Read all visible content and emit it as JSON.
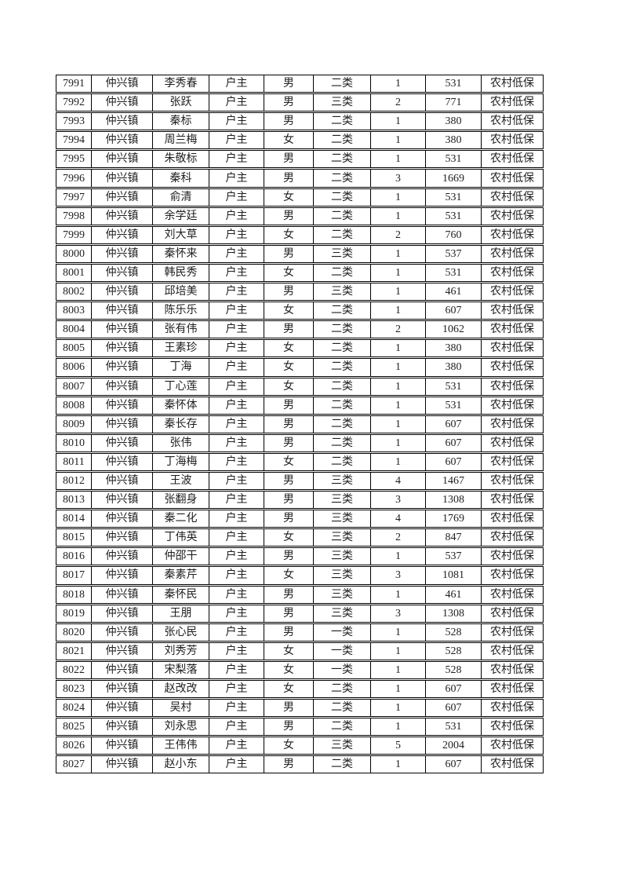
{
  "page": {
    "background_color": "#ffffff",
    "text_color": "#1f1f1f",
    "border_color": "#000000"
  },
  "table": {
    "column_keys": [
      "serial-number",
      "town",
      "name",
      "household-role",
      "gender",
      "category",
      "person-count",
      "amount",
      "benefit-type"
    ],
    "rows": [
      [
        "7991",
        "仲兴镇",
        "李秀春",
        "户主",
        "男",
        "二类",
        "1",
        "531",
        "农村低保"
      ],
      [
        "7992",
        "仲兴镇",
        "张跃",
        "户主",
        "男",
        "三类",
        "2",
        "771",
        "农村低保"
      ],
      [
        "7993",
        "仲兴镇",
        "秦标",
        "户主",
        "男",
        "二类",
        "1",
        "380",
        "农村低保"
      ],
      [
        "7994",
        "仲兴镇",
        "周兰梅",
        "户主",
        "女",
        "二类",
        "1",
        "380",
        "农村低保"
      ],
      [
        "7995",
        "仲兴镇",
        "朱敬标",
        "户主",
        "男",
        "二类",
        "1",
        "531",
        "农村低保"
      ],
      [
        "7996",
        "仲兴镇",
        "秦科",
        "户主",
        "男",
        "二类",
        "3",
        "1669",
        "农村低保"
      ],
      [
        "7997",
        "仲兴镇",
        "俞清",
        "户主",
        "女",
        "二类",
        "1",
        "531",
        "农村低保"
      ],
      [
        "7998",
        "仲兴镇",
        "余学廷",
        "户主",
        "男",
        "二类",
        "1",
        "531",
        "农村低保"
      ],
      [
        "7999",
        "仲兴镇",
        "刘大草",
        "户主",
        "女",
        "二类",
        "2",
        "760",
        "农村低保"
      ],
      [
        "8000",
        "仲兴镇",
        "秦怀来",
        "户主",
        "男",
        "三类",
        "1",
        "537",
        "农村低保"
      ],
      [
        "8001",
        "仲兴镇",
        "韩民秀",
        "户主",
        "女",
        "二类",
        "1",
        "531",
        "农村低保"
      ],
      [
        "8002",
        "仲兴镇",
        "邱培美",
        "户主",
        "男",
        "三类",
        "1",
        "461",
        "农村低保"
      ],
      [
        "8003",
        "仲兴镇",
        "陈乐乐",
        "户主",
        "女",
        "二类",
        "1",
        "607",
        "农村低保"
      ],
      [
        "8004",
        "仲兴镇",
        "张有伟",
        "户主",
        "男",
        "二类",
        "2",
        "1062",
        "农村低保"
      ],
      [
        "8005",
        "仲兴镇",
        "王素珍",
        "户主",
        "女",
        "二类",
        "1",
        "380",
        "农村低保"
      ],
      [
        "8006",
        "仲兴镇",
        "丁海",
        "户主",
        "女",
        "二类",
        "1",
        "380",
        "农村低保"
      ],
      [
        "8007",
        "仲兴镇",
        "丁心莲",
        "户主",
        "女",
        "二类",
        "1",
        "531",
        "农村低保"
      ],
      [
        "8008",
        "仲兴镇",
        "秦怀体",
        "户主",
        "男",
        "二类",
        "1",
        "531",
        "农村低保"
      ],
      [
        "8009",
        "仲兴镇",
        "秦长存",
        "户主",
        "男",
        "二类",
        "1",
        "607",
        "农村低保"
      ],
      [
        "8010",
        "仲兴镇",
        "张伟",
        "户主",
        "男",
        "二类",
        "1",
        "607",
        "农村低保"
      ],
      [
        "8011",
        "仲兴镇",
        "丁海梅",
        "户主",
        "女",
        "二类",
        "1",
        "607",
        "农村低保"
      ],
      [
        "8012",
        "仲兴镇",
        "王波",
        "户主",
        "男",
        "三类",
        "4",
        "1467",
        "农村低保"
      ],
      [
        "8013",
        "仲兴镇",
        "张翻身",
        "户主",
        "男",
        "三类",
        "3",
        "1308",
        "农村低保"
      ],
      [
        "8014",
        "仲兴镇",
        "秦二化",
        "户主",
        "男",
        "三类",
        "4",
        "1769",
        "农村低保"
      ],
      [
        "8015",
        "仲兴镇",
        "丁伟英",
        "户主",
        "女",
        "三类",
        "2",
        "847",
        "农村低保"
      ],
      [
        "8016",
        "仲兴镇",
        "仲邵干",
        "户主",
        "男",
        "三类",
        "1",
        "537",
        "农村低保"
      ],
      [
        "8017",
        "仲兴镇",
        "秦素芹",
        "户主",
        "女",
        "三类",
        "3",
        "1081",
        "农村低保"
      ],
      [
        "8018",
        "仲兴镇",
        "秦怀民",
        "户主",
        "男",
        "三类",
        "1",
        "461",
        "农村低保"
      ],
      [
        "8019",
        "仲兴镇",
        "王朋",
        "户主",
        "男",
        "三类",
        "3",
        "1308",
        "农村低保"
      ],
      [
        "8020",
        "仲兴镇",
        "张心民",
        "户主",
        "男",
        "一类",
        "1",
        "528",
        "农村低保"
      ],
      [
        "8021",
        "仲兴镇",
        "刘秀芳",
        "户主",
        "女",
        "一类",
        "1",
        "528",
        "农村低保"
      ],
      [
        "8022",
        "仲兴镇",
        "宋梨落",
        "户主",
        "女",
        "一类",
        "1",
        "528",
        "农村低保"
      ],
      [
        "8023",
        "仲兴镇",
        "赵改改",
        "户主",
        "女",
        "二类",
        "1",
        "607",
        "农村低保"
      ],
      [
        "8024",
        "仲兴镇",
        "吴村",
        "户主",
        "男",
        "二类",
        "1",
        "607",
        "农村低保"
      ],
      [
        "8025",
        "仲兴镇",
        "刘永思",
        "户主",
        "男",
        "二类",
        "1",
        "531",
        "农村低保"
      ],
      [
        "8026",
        "仲兴镇",
        "王伟伟",
        "户主",
        "女",
        "三类",
        "5",
        "2004",
        "农村低保"
      ],
      [
        "8027",
        "仲兴镇",
        "赵小东",
        "户主",
        "男",
        "二类",
        "1",
        "607",
        "农村低保"
      ]
    ]
  }
}
